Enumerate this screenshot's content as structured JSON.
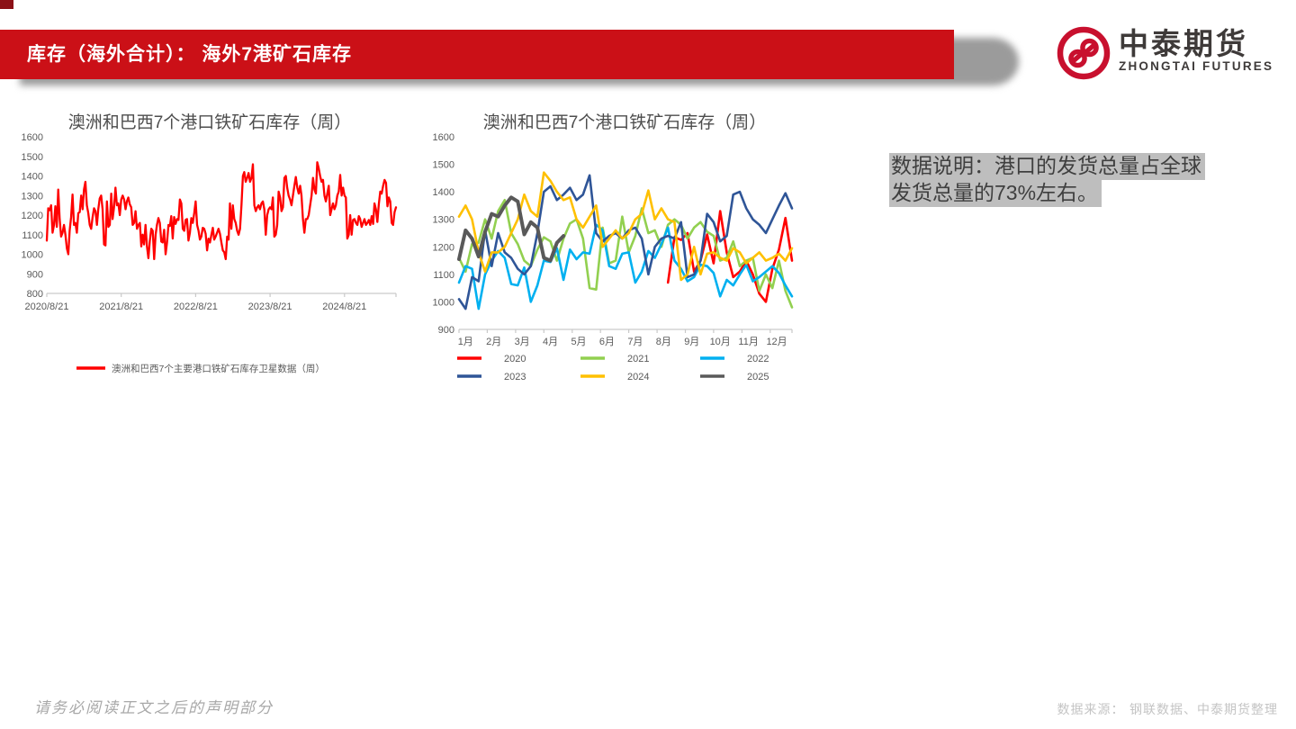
{
  "header": {
    "title": "库存（海外合计）：  海外7港矿石库存",
    "bar_color": "#CB1017",
    "accent_dark": "#8C1116"
  },
  "logo": {
    "name_cn": "中泰期货",
    "name_en": "ZHONGTAI FUTURES",
    "emblem_color": "#C8102E",
    "text_color": "#3E3A39"
  },
  "note": {
    "lines": [
      "数据说明：港口的发货总量占全球",
      "发货总量的73%左右。"
    ],
    "full_text": "数据说明：港口的发货总量占全球发货总量的73%左右。",
    "highlight_color": "#BEBEBE",
    "text_color": "#3F3F3F"
  },
  "footer": {
    "left": "请务必阅读正文之后的声明部分",
    "right": "数据来源： 钢联数据、中泰期货整理"
  },
  "chart_data": [
    {
      "type": "line",
      "title": "澳洲和巴西7个港口铁矿石库存（周）",
      "xlabel": "",
      "ylabel": "",
      "ylim": [
        800,
        1600
      ],
      "ytick_step": 100,
      "x_tick_labels": [
        "2020/8/21",
        "2021/8/21",
        "2022/8/21",
        "2023/8/21",
        "2024/8/21"
      ],
      "grid": false,
      "legend_position": "bottom",
      "legend": [
        {
          "label": "澳洲和巴西7个主要港口铁矿石库存卫星数据（周）",
          "color": "#FF0000"
        }
      ],
      "series_source": "weekly time series 2020/8/21 – 2025/4; values are the chronological concatenation of the yearly series listed in the second chart"
    },
    {
      "type": "line",
      "title": "澳洲和巴西7个港口铁矿石库存（周）",
      "xlabel": "",
      "ylabel": "",
      "ylim": [
        900,
        1600
      ],
      "ytick_step": 100,
      "x_tick_labels": [
        "1月",
        "2月",
        "3月",
        "4月",
        "5月",
        "6月",
        "7月",
        "8月",
        "9月",
        "10月",
        "11月",
        "12月"
      ],
      "weeks_per_year": 52,
      "grid": false,
      "legend_position": "bottom",
      "series": [
        {
          "name": "2020",
          "color": "#FF0000",
          "start_week": 33,
          "values": [
            1070,
            1235,
            1225,
            1250,
            1110,
            1150,
            1245,
            1140,
            1330,
            1180,
            1090,
            1110,
            1150,
            1100,
            1030,
            1000,
            1120,
            1190,
            1305,
            1150
          ]
        },
        {
          "name": "2021",
          "color": "#92D050",
          "start_week": 1,
          "values": [
            1160,
            1110,
            1210,
            1215,
            1300,
            1230,
            1330,
            1370,
            1250,
            1210,
            1150,
            1130,
            1190,
            1235,
            1220,
            1150,
            1230,
            1285,
            1300,
            1230,
            1050,
            1045,
            1270,
            1140,
            1150,
            1310,
            1180,
            1240,
            1340,
            1250,
            1260,
            1200,
            1280,
            1300,
            1280,
            1230,
            1270,
            1290,
            1255,
            1240,
            1150,
            1160,
            1220,
            1130,
            1150,
            1160,
            1040,
            1100,
            1050,
            1150,
            1040,
            980
          ]
        },
        {
          "name": "2022",
          "color": "#00B0F0",
          "start_week": 1,
          "values": [
            1070,
            1130,
            1120,
            975,
            1100,
            1150,
            1185,
            1160,
            1065,
            1060,
            1125,
            1000,
            1060,
            1150,
            1145,
            1195,
            1080,
            1190,
            1155,
            1180,
            1175,
            1280,
            1260,
            1130,
            1120,
            1175,
            1180,
            1070,
            1110,
            1185,
            1160,
            1210,
            1270,
            1150,
            1120,
            1075,
            1090,
            1135,
            1130,
            1105,
            1020,
            1080,
            1060,
            1100,
            1135,
            1075,
            1090,
            1110,
            1130,
            1105,
            1060,
            1020
          ]
        },
        {
          "name": "2023",
          "color": "#2F5597",
          "start_week": 1,
          "values": [
            1010,
            975,
            1090,
            1075,
            1260,
            1130,
            1250,
            1180,
            1160,
            1120,
            1100,
            1130,
            1250,
            1400,
            1420,
            1370,
            1390,
            1415,
            1370,
            1390,
            1460,
            1250,
            1220,
            1240,
            1250,
            1230,
            1260,
            1270,
            1230,
            1100,
            1200,
            1230,
            1240,
            1230,
            1290,
            1090,
            1100,
            1150,
            1320,
            1290,
            1220,
            1240,
            1390,
            1400,
            1340,
            1300,
            1280,
            1250,
            1300,
            1350,
            1395,
            1340
          ]
        },
        {
          "name": "2024",
          "color": "#FFC000",
          "start_week": 1,
          "values": [
            1310,
            1350,
            1300,
            1180,
            1110,
            1180,
            1180,
            1200,
            1250,
            1300,
            1390,
            1330,
            1310,
            1470,
            1440,
            1400,
            1370,
            1380,
            1300,
            1270,
            1310,
            1350,
            1200,
            1230,
            1260,
            1230,
            1250,
            1300,
            1320,
            1405,
            1300,
            1340,
            1300,
            1290,
            1080,
            1100,
            1200,
            1100,
            1175,
            1180,
            1160,
            1150,
            1195,
            1180,
            1140,
            1160,
            1180,
            1150,
            1160,
            1175,
            1150,
            1195
          ]
        },
        {
          "name": "2025",
          "color": "#595959",
          "start_week": 1,
          "values": [
            1155,
            1260,
            1230,
            1165,
            1255,
            1320,
            1310,
            1350,
            1380,
            1365,
            1245,
            1290,
            1270,
            1160,
            1150,
            1215,
            1240
          ]
        }
      ]
    }
  ]
}
